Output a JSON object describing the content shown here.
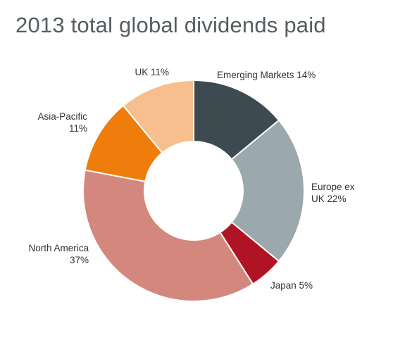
{
  "chart_data": {
    "type": "pie",
    "title": "2013 total global dividends paid",
    "slices": [
      {
        "label": "Emerging Markets",
        "value": 14,
        "value_label": "14%",
        "color": "#3d4a51"
      },
      {
        "label": "Europe ex UK",
        "value": 22,
        "value_label": "22%",
        "color": "#9ba8ad"
      },
      {
        "label": "Japan",
        "value": 5,
        "value_label": "5%",
        "color": "#b01323"
      },
      {
        "label": "North America",
        "value": 37,
        "value_label": "37%",
        "color": "#d4877c"
      },
      {
        "label": "Asia-Pacific",
        "value": 11,
        "value_label": "11%",
        "color": "#ee7d0b"
      },
      {
        "label": "UK",
        "value": 11,
        "value_label": "11%",
        "color": "#f6bf8d"
      }
    ],
    "labels": [
      {
        "lines": [
          "Emerging Markets 14%"
        ]
      },
      {
        "lines": [
          "Europe ex",
          "UK 22%"
        ]
      },
      {
        "lines": [
          "Japan 5%"
        ]
      },
      {
        "lines": [
          "North America",
          "37%"
        ]
      },
      {
        "lines": [
          "Asia-Pacific",
          "11%"
        ]
      },
      {
        "lines": [
          "UK 11%"
        ]
      }
    ],
    "donut": true
  }
}
